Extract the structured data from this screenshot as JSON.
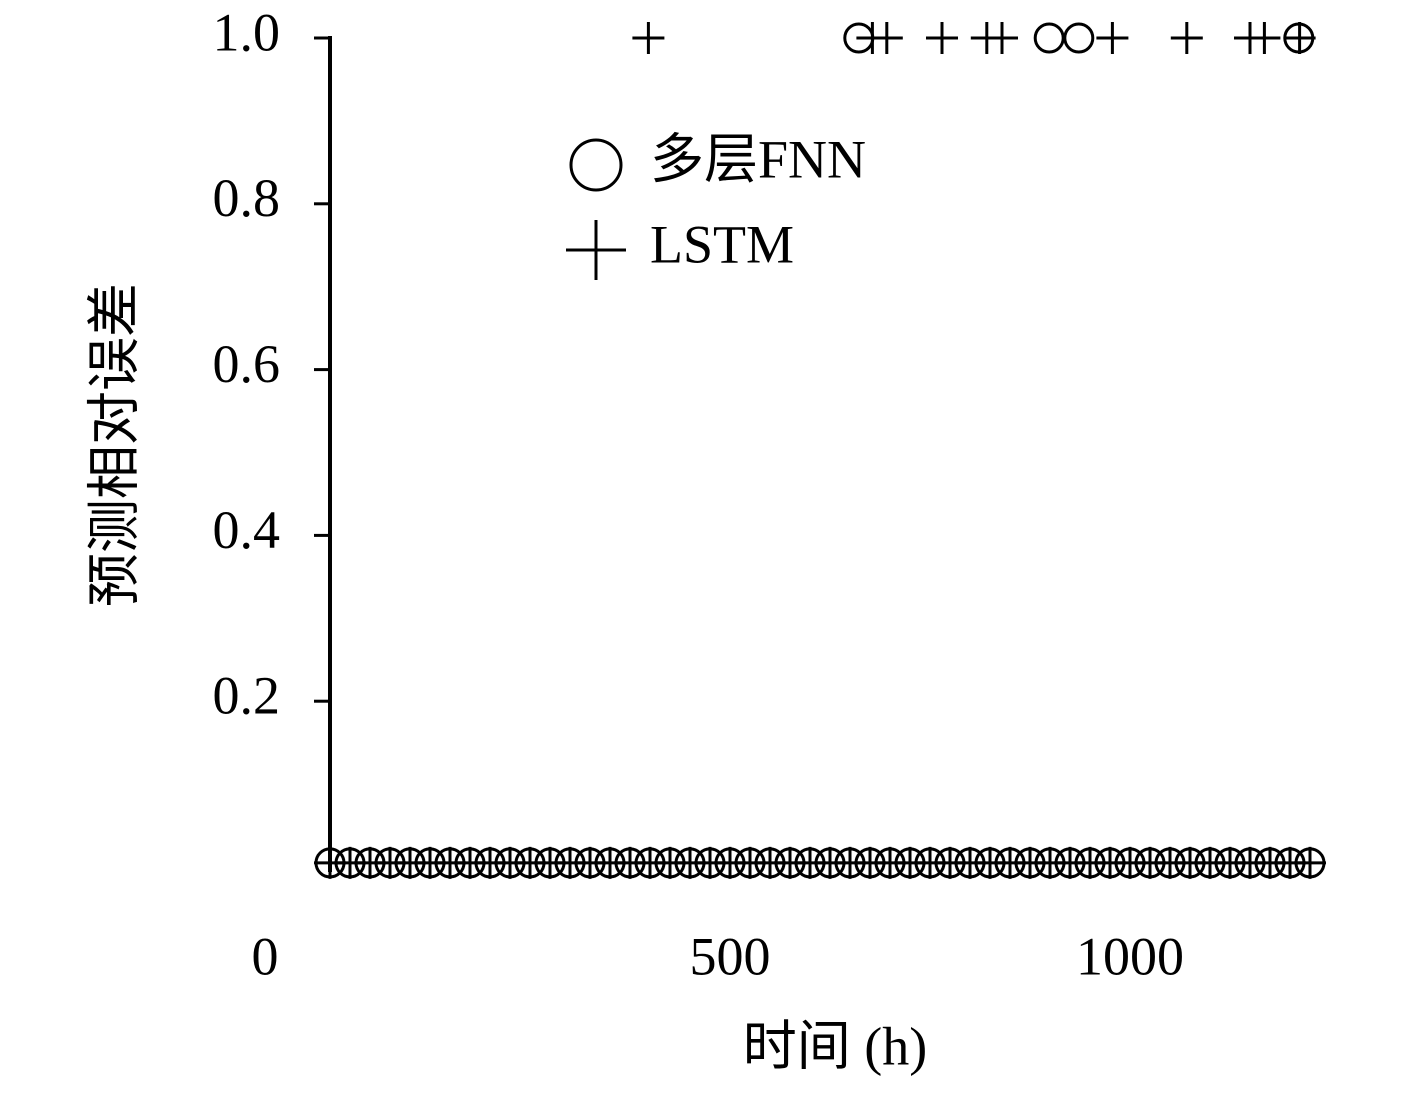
{
  "chart_data": {
    "type": "scatter",
    "x_label": "时间 (h)",
    "y_label": "预测相对误差",
    "xlim": [
      0,
      1250
    ],
    "xticks": [
      0,
      500,
      1000
    ],
    "ylim": [
      0,
      1
    ],
    "yticks": [
      0.2,
      0.4,
      0.6,
      0.8,
      {
        "value": 1,
        "label": "1.0"
      }
    ],
    "legend": "upper-left",
    "series": [
      {
        "name": "多层FNN",
        "marker": "circle",
        "color": "#000000",
        "x": [
          0,
          25,
          50,
          75,
          100,
          125,
          150,
          175,
          200,
          225,
          250,
          275,
          300,
          325,
          350,
          375,
          400,
          425,
          450,
          475,
          500,
          525,
          550,
          575,
          600,
          625,
          650,
          675,
          700,
          725,
          750,
          775,
          800,
          825,
          850,
          875,
          900,
          925,
          950,
          975,
          1000,
          1025,
          1050,
          1075,
          1100,
          1125,
          1150,
          1175,
          1200,
          1225,
          661,
          899,
          936,
          1211
        ],
        "values": [
          0.005,
          0.005,
          0.005,
          0.005,
          0.005,
          0.005,
          0.005,
          0.005,
          0.005,
          0.005,
          0.005,
          0.005,
          0.005,
          0.005,
          0.005,
          0.005,
          0.005,
          0.005,
          0.005,
          0.005,
          0.005,
          0.005,
          0.005,
          0.005,
          0.005,
          0.005,
          0.005,
          0.005,
          0.005,
          0.005,
          0.005,
          0.005,
          0.005,
          0.005,
          0.005,
          0.005,
          0.005,
          0.005,
          0.005,
          0.005,
          0.005,
          0.005,
          0.005,
          0.005,
          0.005,
          0.005,
          0.005,
          0.005,
          0.005,
          0.005,
          1,
          1,
          1,
          1
        ]
      },
      {
        "name": "LSTM",
        "marker": "plus",
        "color": "#000000",
        "x": [
          0,
          25,
          50,
          75,
          100,
          125,
          150,
          175,
          200,
          225,
          250,
          275,
          300,
          325,
          350,
          375,
          400,
          425,
          450,
          475,
          500,
          525,
          550,
          575,
          600,
          625,
          650,
          675,
          700,
          725,
          750,
          775,
          800,
          825,
          850,
          875,
          900,
          925,
          950,
          975,
          1000,
          1025,
          1050,
          1075,
          1100,
          1125,
          1150,
          1175,
          1200,
          1225,
          398,
          678,
          696,
          765,
          821,
          840,
          978,
          1071,
          1150,
          1168,
          1212
        ],
        "values": [
          0.005,
          0.005,
          0.005,
          0.005,
          0.005,
          0.005,
          0.005,
          0.005,
          0.005,
          0.005,
          0.005,
          0.005,
          0.005,
          0.005,
          0.005,
          0.005,
          0.005,
          0.005,
          0.005,
          0.005,
          0.005,
          0.005,
          0.005,
          0.005,
          0.005,
          0.005,
          0.005,
          0.005,
          0.005,
          0.005,
          0.005,
          0.005,
          0.005,
          0.005,
          0.005,
          0.005,
          0.005,
          0.005,
          0.005,
          0.005,
          0.005,
          0.005,
          0.005,
          0.005,
          0.005,
          0.005,
          0.005,
          0.005,
          0.005,
          0.005,
          1,
          1,
          1,
          1,
          1,
          1,
          1,
          1,
          1,
          1,
          1
        ]
      }
    ]
  }
}
